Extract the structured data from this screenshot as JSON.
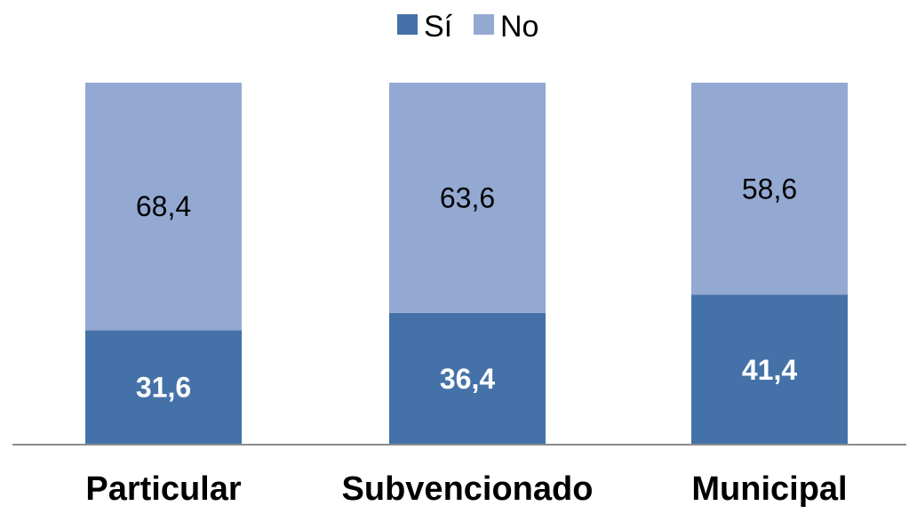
{
  "chart_data": {
    "type": "bar",
    "stacked": true,
    "normalized_percent": true,
    "categories": [
      "Particular",
      "Subvencionado",
      "Municipal"
    ],
    "series": [
      {
        "name": "Sí",
        "values": [
          31.6,
          36.4,
          41.4
        ],
        "labels": [
          "31,6",
          "36,4",
          "41,4"
        ],
        "color": "#4472a8",
        "label_color": "#ffffff",
        "label_bold": true
      },
      {
        "name": "No",
        "values": [
          68.4,
          63.6,
          58.6
        ],
        "labels": [
          "68,4",
          "63,6",
          "58,6"
        ],
        "color": "#94a9d2",
        "label_color": "#000000",
        "label_bold": false
      }
    ],
    "ylim": [
      0,
      100
    ],
    "legend_position": "top-center",
    "grid": false,
    "axis_color": "#8c8c8c"
  }
}
